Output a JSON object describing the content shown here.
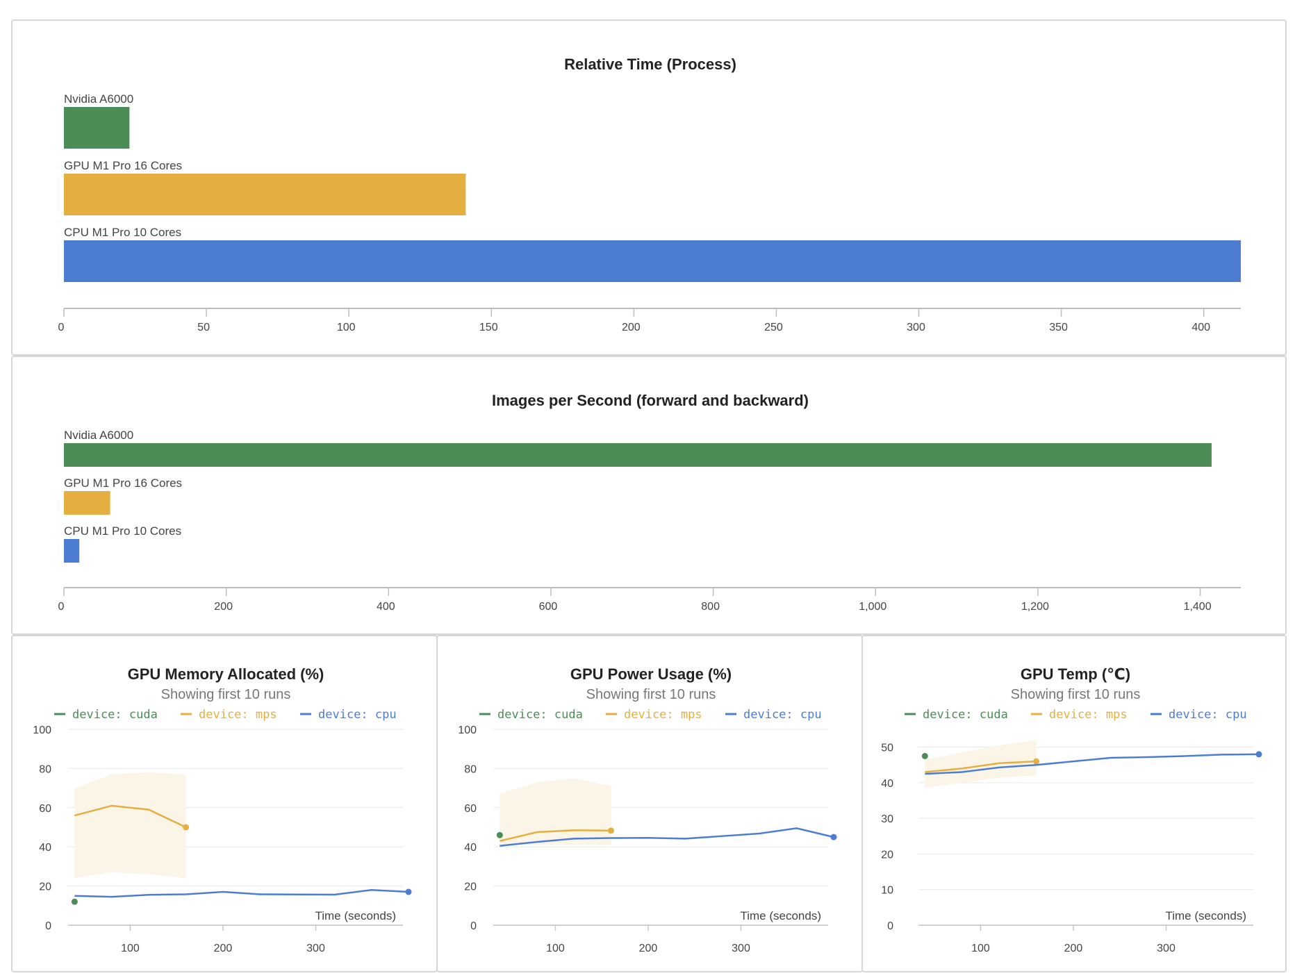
{
  "colors": {
    "green": "#4c8c57",
    "gold": "#e5ae41",
    "blue": "#4c7dd3",
    "band": "#fbf5e8",
    "grid": "#e8e8e8",
    "axis": "#bdbdbd"
  },
  "chart_data": [
    {
      "id": "relative-time",
      "type": "bar",
      "orientation": "horizontal",
      "title": "Relative Time (Process)",
      "categories": [
        "Nvidia A6000",
        "GPU M1 Pro 16 Cores",
        "CPU M1 Pro 10 Cores"
      ],
      "values": [
        23,
        141,
        413
      ],
      "bar_colors": [
        "#4c8c57",
        "#e5ae41",
        "#4c7dd3"
      ],
      "xlim": [
        0,
        413
      ],
      "ticks": [
        0,
        50,
        100,
        150,
        200,
        250,
        300,
        350,
        400
      ],
      "tick_labels": [
        "0",
        "50",
        "100",
        "150",
        "200",
        "250",
        "300",
        "350",
        "400"
      ]
    },
    {
      "id": "images-per-second",
      "type": "bar",
      "orientation": "horizontal",
      "title": "Images per Second (forward and backward)",
      "categories": [
        "Nvidia A6000",
        "GPU M1 Pro 16 Cores",
        "CPU M1 Pro 10 Cores"
      ],
      "values": [
        1414,
        57,
        19
      ],
      "bar_colors": [
        "#4c8c57",
        "#e5ae41",
        "#4c7dd3"
      ],
      "xlim": [
        0,
        1450
      ],
      "ticks": [
        0,
        200,
        400,
        600,
        800,
        1000,
        1200,
        1400
      ],
      "tick_labels": [
        "0",
        "200",
        "400",
        "600",
        "800",
        "1,000",
        "1,200",
        "1,400"
      ]
    },
    {
      "id": "gpu-memory",
      "type": "line",
      "title": "GPU Memory Allocated (%)",
      "subtitle": "Showing first 10 runs",
      "xlabel": "Time (seconds)",
      "xlim": [
        33,
        394
      ],
      "ylim": [
        0,
        100
      ],
      "xticks": [
        100,
        200,
        300
      ],
      "yticks": [
        0,
        20,
        40,
        60,
        80,
        100
      ],
      "series": [
        {
          "name": "device: cuda",
          "color": "#4c8c57",
          "x": [
            40
          ],
          "y": [
            12
          ]
        },
        {
          "name": "device: mps",
          "color": "#e5ae41",
          "x": [
            40,
            80,
            120,
            160
          ],
          "y": [
            56,
            61,
            59,
            50
          ],
          "band_upper": [
            70,
            77,
            78,
            77
          ],
          "band_lower": [
            24,
            27,
            26,
            24
          ]
        },
        {
          "name": "device: cpu",
          "color": "#4c7dd3",
          "x": [
            40,
            80,
            120,
            160,
            200,
            240,
            280,
            320,
            360,
            400
          ],
          "y": [
            15,
            14.5,
            15.5,
            15.8,
            17,
            15.8,
            15.7,
            15.6,
            18,
            17
          ]
        }
      ]
    },
    {
      "id": "gpu-power",
      "type": "line",
      "title": "GPU Power Usage (%)",
      "subtitle": "Showing first 10 runs",
      "xlabel": "Time (seconds)",
      "xlim": [
        33,
        394
      ],
      "ylim": [
        0,
        100
      ],
      "xticks": [
        100,
        200,
        300
      ],
      "yticks": [
        0,
        20,
        40,
        60,
        80,
        100
      ],
      "series": [
        {
          "name": "device: cuda",
          "color": "#4c8c57",
          "x": [
            40
          ],
          "y": [
            46
          ]
        },
        {
          "name": "device: mps",
          "color": "#e5ae41",
          "x": [
            40,
            80,
            120,
            160
          ],
          "y": [
            43,
            47.5,
            48.5,
            48.3
          ],
          "band_upper": [
            67,
            73,
            75,
            71
          ],
          "band_lower": [
            41,
            41,
            41,
            41
          ]
        },
        {
          "name": "device: cpu",
          "color": "#4c7dd3",
          "x": [
            40,
            80,
            120,
            160,
            200,
            240,
            280,
            320,
            360,
            400
          ],
          "y": [
            40.5,
            42.5,
            44.2,
            44.5,
            44.6,
            44.2,
            45.5,
            46.8,
            49.5,
            45
          ]
        }
      ]
    },
    {
      "id": "gpu-temp",
      "type": "line",
      "title": "GPU Temp (℃)",
      "subtitle": "Showing first 10 runs",
      "xlabel": "Time (seconds)",
      "xlim": [
        33,
        394
      ],
      "ylim": [
        0,
        55
      ],
      "xticks": [
        100,
        200,
        300
      ],
      "yticks": [
        0,
        10,
        20,
        30,
        40,
        50
      ],
      "series": [
        {
          "name": "device: cuda",
          "color": "#4c8c57",
          "x": [
            40
          ],
          "y": [
            47.5
          ]
        },
        {
          "name": "device: mps",
          "color": "#e5ae41",
          "x": [
            40,
            80,
            120,
            160
          ],
          "y": [
            43,
            44,
            45.5,
            46
          ],
          "band_upper": [
            46.5,
            48.5,
            50.5,
            52
          ],
          "band_lower": [
            38.5,
            40,
            41.5,
            42
          ]
        },
        {
          "name": "device: cpu",
          "color": "#4c7dd3",
          "x": [
            40,
            80,
            120,
            160,
            200,
            240,
            280,
            320,
            360,
            400
          ],
          "y": [
            42.5,
            43,
            44.3,
            45,
            46,
            47,
            47.2,
            47.5,
            47.9,
            48
          ]
        }
      ]
    }
  ]
}
